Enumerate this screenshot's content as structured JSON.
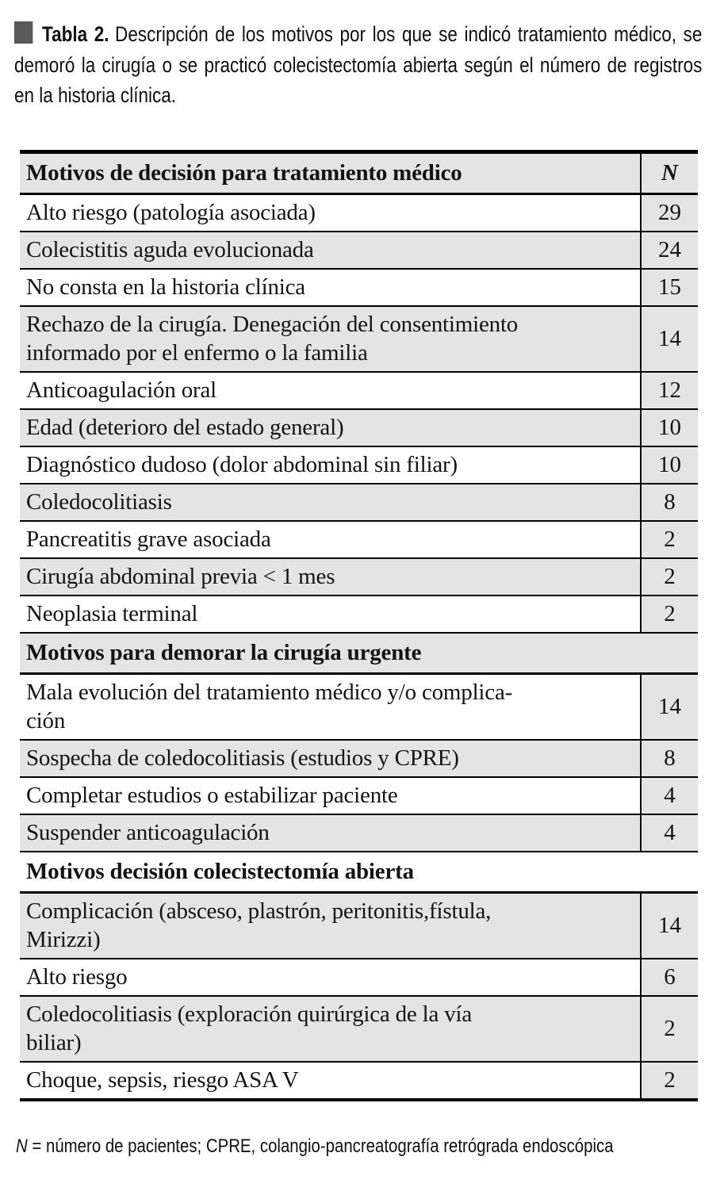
{
  "colors": {
    "row_shade": "#e4e4e4",
    "bullet_square": "#595959",
    "rule": "#000000",
    "text": "#141414"
  },
  "caption": {
    "label": "Tabla 2.",
    "text": "Descripción de los motivos por los que se indicó tratamiento médico, se demoró la cirugía o se practicó colecistectomía abierta según el número de registros en la historia clínica."
  },
  "table": {
    "rows": [
      {
        "type": "header",
        "label": "Motivos de decisión para tratamiento médico",
        "n": "N"
      },
      {
        "type": "data",
        "label": "Alto riesgo (patología asociada)",
        "n": "29"
      },
      {
        "type": "data",
        "label": "Colecistitis aguda evolucionada",
        "n": "24"
      },
      {
        "type": "data",
        "label": "No consta en la historia clínica",
        "n": "15"
      },
      {
        "type": "data",
        "lines": [
          "Rechazo de la cirugía. Denegación del consentimiento",
          "informado por el enfermo o la familia"
        ],
        "n": "14"
      },
      {
        "type": "data",
        "label": "Anticoagulación oral",
        "n": "12"
      },
      {
        "type": "data",
        "label": "Edad (deterioro del estado general)",
        "n": "10"
      },
      {
        "type": "data",
        "label": "Diagnóstico dudoso (dolor abdominal sin filiar)",
        "n": "10"
      },
      {
        "type": "data",
        "label": "Coledocolitiasis",
        "n": "8"
      },
      {
        "type": "data",
        "label": "Pancreatitis grave asociada",
        "n": "2"
      },
      {
        "type": "data",
        "label": "Cirugía abdominal previa < 1 mes",
        "n": "2"
      },
      {
        "type": "data",
        "label": "Neoplasia terminal",
        "n": "2"
      },
      {
        "type": "section",
        "label": "Motivos para demorar la cirugía urgente"
      },
      {
        "type": "data",
        "lines": [
          "Mala evolución del tratamiento médico y/o complica-",
          "ción"
        ],
        "n": "14"
      },
      {
        "type": "data",
        "label": "Sospecha de coledocolitiasis (estudios y CPRE)",
        "n": "8"
      },
      {
        "type": "data",
        "label": "Completar estudios o estabilizar paciente",
        "n": "4"
      },
      {
        "type": "data",
        "label": "Suspender anticoagulación",
        "n": "4"
      },
      {
        "type": "section",
        "label": "Motivos decisión colecistectomía abierta"
      },
      {
        "type": "data",
        "lines": [
          "Complicación (absceso, plastrón, peritonitis,fístula,",
          "Mirizzi)"
        ],
        "n": "14"
      },
      {
        "type": "data",
        "label": "Alto riesgo",
        "n": "6"
      },
      {
        "type": "data",
        "lines": [
          "Coledocolitiasis (exploración quirúrgica de la vía",
          "biliar)"
        ],
        "n": "2"
      },
      {
        "type": "data",
        "label": "Choque, sepsis, riesgo ASA V",
        "n": "2"
      }
    ]
  },
  "footnote": {
    "symbol": "N",
    "text": " = número de pacientes; CPRE, colangio-pancreatografía retrógrada endoscópica"
  }
}
